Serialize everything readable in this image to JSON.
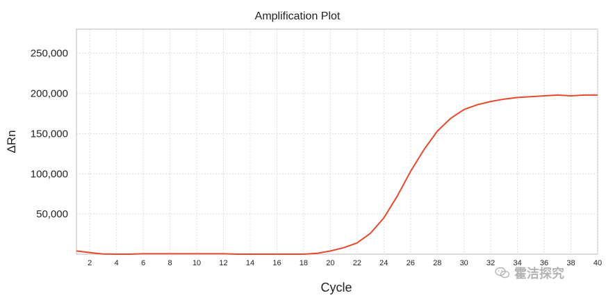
{
  "chart_data": {
    "type": "line",
    "title": "Amplification Plot",
    "xlabel": "Cycle",
    "ylabel": "ΔRn",
    "xlim": [
      1,
      40
    ],
    "ylim": [
      0,
      280000
    ],
    "xticks": [
      2,
      4,
      6,
      8,
      10,
      12,
      14,
      16,
      18,
      20,
      22,
      24,
      26,
      28,
      30,
      32,
      34,
      36,
      38,
      40
    ],
    "xtick_labels": [
      "2",
      "4",
      "6",
      "8",
      "10",
      "12",
      "14",
      "16",
      "18",
      "20",
      "22",
      "24",
      "26",
      "28",
      "30",
      "32",
      "34",
      "36",
      "38",
      "40"
    ],
    "yticks": [
      50000,
      100000,
      150000,
      200000,
      250000
    ],
    "ytick_labels": [
      "50,000",
      "100,000",
      "150,000",
      "200,000",
      "250,000"
    ],
    "grid": true,
    "series": [
      {
        "color": "#e8472a",
        "x": [
          1,
          2,
          3,
          4,
          5,
          6,
          7,
          8,
          9,
          10,
          11,
          12,
          13,
          14,
          15,
          16,
          17,
          18,
          19,
          20,
          21,
          22,
          23,
          24,
          25,
          26,
          27,
          28,
          29,
          30,
          31,
          32,
          33,
          34,
          35,
          36,
          37,
          38,
          39,
          40
        ],
        "y": [
          4000,
          2000,
          200,
          0,
          0,
          500,
          500,
          500,
          500,
          500,
          500,
          500,
          0,
          0,
          0,
          0,
          0,
          0,
          1000,
          4000,
          8000,
          14000,
          26000,
          45000,
          72000,
          103000,
          130000,
          153000,
          169000,
          180000,
          186000,
          190000,
          193000,
          195000,
          196000,
          197000,
          198000,
          197000,
          198000,
          198000
        ]
      }
    ]
  },
  "watermark": {
    "text": "霍洁探究",
    "icon": "wechat-icon"
  }
}
